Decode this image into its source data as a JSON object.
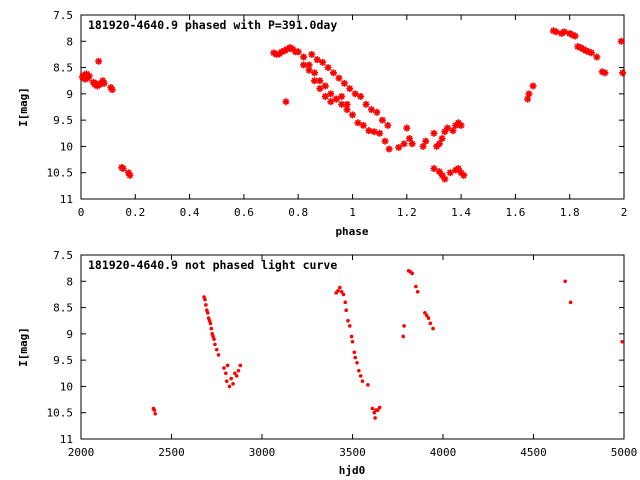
{
  "colors": {
    "points": "#ff0000",
    "axes": "#000000",
    "background": "#ffffff"
  },
  "chart_data": [
    {
      "type": "scatter",
      "title": "181920-4640.9 phased with P=391.0day",
      "xlabel": "phase",
      "ylabel": "I[mag]",
      "xlim": [
        0,
        2
      ],
      "ylim": [
        11,
        7.5
      ],
      "y_inverted": true,
      "grid": false,
      "marker": "star",
      "x_ticks": [
        0,
        0.2,
        0.4,
        0.6,
        0.8,
        1,
        1.2,
        1.4,
        1.6,
        1.8,
        2
      ],
      "x_tick_labels": [
        "0",
        "0.2",
        "0.4",
        "0.6",
        "0.8",
        "1",
        "1.2",
        "1.4",
        "1.6",
        "1.8",
        "2"
      ],
      "y_ticks": [
        7.5,
        8,
        8.5,
        9,
        9.5,
        10,
        10.5,
        11
      ],
      "y_tick_labels": [
        "7.5",
        "8",
        "8.5",
        "9",
        "9.5",
        "10",
        "10.5",
        "11"
      ],
      "series": [
        {
          "points": [
            [
              0.005,
              8.68
            ],
            [
              0.01,
              8.65
            ],
            [
              0.015,
              8.72
            ],
            [
              0.02,
              8.62
            ],
            [
              0.025,
              8.7
            ],
            [
              0.03,
              8.66
            ],
            [
              0.045,
              8.78
            ],
            [
              0.05,
              8.82
            ],
            [
              0.055,
              8.8
            ],
            [
              0.06,
              8.85
            ],
            [
              0.065,
              8.38
            ],
            [
              0.07,
              8.82
            ],
            [
              0.08,
              8.75
            ],
            [
              0.085,
              8.8
            ],
            [
              0.11,
              8.88
            ],
            [
              0.115,
              8.92
            ],
            [
              0.15,
              10.4
            ],
            [
              0.155,
              10.42
            ],
            [
              0.175,
              10.5
            ],
            [
              0.18,
              10.55
            ],
            [
              0.71,
              8.22
            ],
            [
              0.72,
              8.25
            ],
            [
              0.73,
              8.24
            ],
            [
              0.74,
              8.2
            ],
            [
              0.75,
              8.18
            ],
            [
              0.76,
              8.15
            ],
            [
              0.77,
              8.12
            ],
            [
              0.78,
              8.15
            ],
            [
              0.79,
              8.2
            ],
            [
              0.755,
              9.15
            ],
            [
              0.8,
              8.2
            ],
            [
              0.82,
              8.3
            ],
            [
              0.84,
              8.45
            ],
            [
              0.86,
              8.6
            ],
            [
              0.88,
              8.75
            ],
            [
              0.9,
              8.85
            ],
            [
              0.92,
              9.0
            ],
            [
              0.94,
              9.1
            ],
            [
              0.96,
              9.2
            ],
            [
              0.98,
              9.3
            ],
            [
              1.0,
              9.4
            ],
            [
              1.02,
              9.55
            ],
            [
              1.04,
              9.6
            ],
            [
              1.06,
              9.7
            ],
            [
              1.08,
              9.72
            ],
            [
              1.1,
              9.75
            ],
            [
              1.12,
              9.9
            ],
            [
              1.135,
              10.05
            ],
            [
              0.85,
              8.25
            ],
            [
              0.87,
              8.35
            ],
            [
              0.89,
              8.4
            ],
            [
              0.91,
              8.5
            ],
            [
              0.93,
              8.6
            ],
            [
              0.95,
              8.7
            ],
            [
              0.97,
              8.8
            ],
            [
              0.99,
              8.9
            ],
            [
              1.01,
              9.0
            ],
            [
              1.03,
              9.05
            ],
            [
              1.05,
              9.2
            ],
            [
              1.07,
              9.3
            ],
            [
              1.09,
              9.35
            ],
            [
              1.11,
              9.5
            ],
            [
              1.13,
              9.6
            ],
            [
              0.82,
              8.45
            ],
            [
              0.84,
              8.55
            ],
            [
              0.86,
              8.75
            ],
            [
              0.88,
              8.9
            ],
            [
              0.9,
              9.05
            ],
            [
              0.92,
              9.15
            ],
            [
              0.94,
              9.1
            ],
            [
              0.96,
              9.05
            ],
            [
              0.98,
              9.2
            ],
            [
              1.17,
              10.02
            ],
            [
              1.19,
              9.95
            ],
            [
              1.2,
              9.65
            ],
            [
              1.21,
              9.85
            ],
            [
              1.22,
              9.95
            ],
            [
              1.26,
              10.0
            ],
            [
              1.27,
              9.9
            ],
            [
              1.3,
              9.75
            ],
            [
              1.31,
              10.0
            ],
            [
              1.32,
              9.95
            ],
            [
              1.33,
              9.85
            ],
            [
              1.34,
              9.72
            ],
            [
              1.35,
              9.65
            ],
            [
              1.37,
              9.7
            ],
            [
              1.38,
              9.6
            ],
            [
              1.39,
              9.55
            ],
            [
              1.4,
              9.6
            ],
            [
              1.3,
              10.42
            ],
            [
              1.32,
              10.48
            ],
            [
              1.33,
              10.55
            ],
            [
              1.34,
              10.62
            ],
            [
              1.36,
              10.5
            ],
            [
              1.38,
              10.45
            ],
            [
              1.39,
              10.42
            ],
            [
              1.4,
              10.5
            ],
            [
              1.41,
              10.55
            ],
            [
              1.645,
              9.1
            ],
            [
              1.65,
              9.0
            ],
            [
              1.665,
              8.85
            ],
            [
              1.74,
              7.8
            ],
            [
              1.75,
              7.82
            ],
            [
              1.77,
              7.85
            ],
            [
              1.78,
              7.82
            ],
            [
              1.8,
              7.85
            ],
            [
              1.81,
              7.88
            ],
            [
              1.82,
              7.9
            ],
            [
              1.83,
              8.1
            ],
            [
              1.84,
              8.12
            ],
            [
              1.85,
              8.15
            ],
            [
              1.86,
              8.18
            ],
            [
              1.87,
              8.2
            ],
            [
              1.88,
              8.22
            ],
            [
              1.9,
              8.3
            ],
            [
              1.92,
              8.58
            ],
            [
              1.93,
              8.6
            ],
            [
              1.99,
              8.0
            ],
            [
              1.995,
              8.6
            ]
          ]
        }
      ]
    },
    {
      "type": "scatter",
      "title": "181920-4640.9 not phased light curve",
      "xlabel": "hjd0",
      "ylabel": "I[mag]",
      "xlim": [
        2000,
        5000
      ],
      "ylim": [
        11,
        7.5
      ],
      "y_inverted": true,
      "grid": false,
      "marker": "dot",
      "x_ticks": [
        2000,
        2500,
        3000,
        3500,
        4000,
        4500,
        5000
      ],
      "x_tick_labels": [
        "2000",
        "2500",
        "3000",
        "3500",
        "4000",
        "4500",
        "5000"
      ],
      "y_ticks": [
        7.5,
        8,
        8.5,
        9,
        9.5,
        10,
        10.5,
        11
      ],
      "y_tick_labels": [
        "7.5",
        "8",
        "8.5",
        "9",
        "9.5",
        "10",
        "10.5",
        "11"
      ],
      "series": [
        {
          "points": [
            [
              2400,
              10.42
            ],
            [
              2405,
              10.45
            ],
            [
              2410,
              10.52
            ],
            [
              2680,
              8.3
            ],
            [
              2685,
              8.35
            ],
            [
              2690,
              8.45
            ],
            [
              2695,
              8.55
            ],
            [
              2700,
              8.6
            ],
            [
              2705,
              8.7
            ],
            [
              2710,
              8.75
            ],
            [
              2715,
              8.8
            ],
            [
              2720,
              8.9
            ],
            [
              2725,
              9.0
            ],
            [
              2730,
              9.05
            ],
            [
              2735,
              9.1
            ],
            [
              2740,
              9.2
            ],
            [
              2750,
              9.3
            ],
            [
              2760,
              9.4
            ],
            [
              2790,
              9.65
            ],
            [
              2800,
              9.75
            ],
            [
              2805,
              9.9
            ],
            [
              2810,
              9.6
            ],
            [
              2820,
              10.0
            ],
            [
              2830,
              9.85
            ],
            [
              2840,
              9.95
            ],
            [
              2850,
              9.75
            ],
            [
              2860,
              9.8
            ],
            [
              2870,
              9.7
            ],
            [
              2880,
              9.6
            ],
            [
              3410,
              8.22
            ],
            [
              3420,
              8.18
            ],
            [
              3430,
              8.12
            ],
            [
              3440,
              8.2
            ],
            [
              3450,
              8.25
            ],
            [
              3460,
              8.4
            ],
            [
              3465,
              8.55
            ],
            [
              3475,
              8.75
            ],
            [
              3485,
              8.85
            ],
            [
              3495,
              9.05
            ],
            [
              3500,
              9.15
            ],
            [
              3510,
              9.35
            ],
            [
              3515,
              9.45
            ],
            [
              3525,
              9.55
            ],
            [
              3535,
              9.7
            ],
            [
              3545,
              9.8
            ],
            [
              3555,
              9.9
            ],
            [
              3585,
              9.97
            ],
            [
              3610,
              10.42
            ],
            [
              3620,
              10.5
            ],
            [
              3625,
              10.6
            ],
            [
              3630,
              10.45
            ],
            [
              3640,
              10.45
            ],
            [
              3650,
              10.4
            ],
            [
              3780,
              9.05
            ],
            [
              3785,
              8.85
            ],
            [
              3810,
              7.8
            ],
            [
              3820,
              7.82
            ],
            [
              3830,
              7.85
            ],
            [
              3850,
              8.1
            ],
            [
              3860,
              8.2
            ],
            [
              3900,
              8.6
            ],
            [
              3910,
              8.65
            ],
            [
              3920,
              8.7
            ],
            [
              3930,
              8.8
            ],
            [
              3945,
              8.9
            ],
            [
              4675,
              8.0
            ],
            [
              4705,
              8.4
            ],
            [
              4990,
              9.15
            ]
          ]
        }
      ]
    }
  ]
}
